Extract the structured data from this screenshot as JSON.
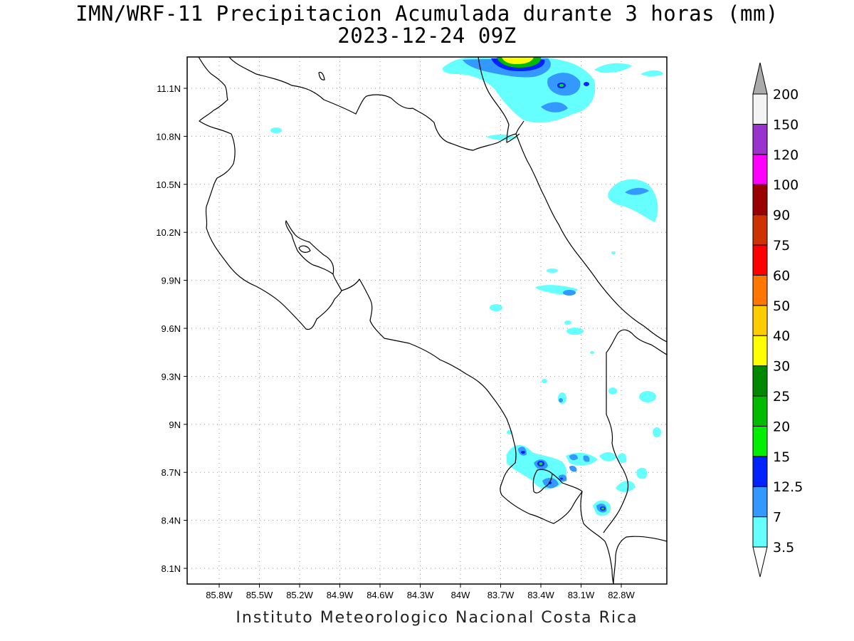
{
  "title": {
    "line1": "IMN/WRF-11 Precipitacion Acumulada durante 3 horas (mm)",
    "line2": "2023-12-24 09Z"
  },
  "footer": "Instituto Meteorologico Nacional Costa Rica",
  "map": {
    "lon_range": [
      -86.0,
      -82.6
    ],
    "lat_range": [
      8.0,
      11.3
    ],
    "x_ticks": [
      "85.8W",
      "85.5W",
      "85.2W",
      "84.9W",
      "84.6W",
      "84.3W",
      "84W",
      "83.7W",
      "83.4W",
      "83.1W",
      "82.8W"
    ],
    "y_ticks": [
      "11.1N",
      "10.8N",
      "10.5N",
      "10.2N",
      "9.9N",
      "9.6N",
      "9.3N",
      "9N",
      "8.7N",
      "8.4N",
      "8.1N"
    ],
    "grid": "dotted"
  },
  "colorbar": {
    "levels": [
      "3.5",
      "7",
      "12.5",
      "15",
      "20",
      "25",
      "30",
      "40",
      "50",
      "60",
      "75",
      "90",
      "100",
      "120",
      "150",
      "200"
    ],
    "colors": [
      "#66ffff",
      "#3399ff",
      "#0022ff",
      "#00ee00",
      "#00bb00",
      "#008800",
      "#ffff00",
      "#ffcc00",
      "#ff7700",
      "#ff0000",
      "#cc3300",
      "#990000",
      "#ff00ff",
      "#9933cc",
      "#f4f4f4",
      "#aaaaaa"
    ]
  }
}
